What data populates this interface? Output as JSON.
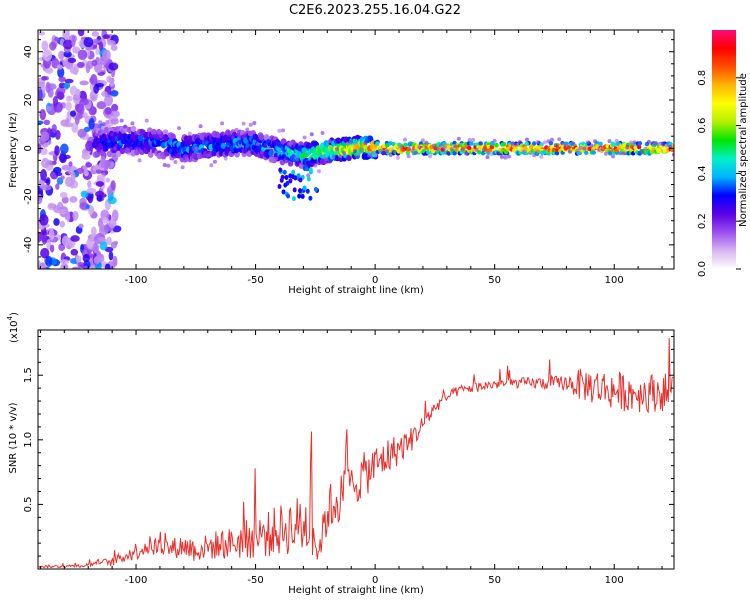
{
  "title": "C2E6.2023.255.16.04.G22",
  "chart_data": [
    {
      "type": "heatmap",
      "xlabel": "Height of straight line (km)",
      "ylabel": "Frequency (Hz)",
      "xlim": [
        -141,
        125
      ],
      "ylim": [
        -50,
        49
      ],
      "xticks": [
        -100,
        -50,
        0,
        50,
        100
      ],
      "yticks": [
        -40,
        -20,
        0,
        20,
        40
      ],
      "grid": false,
      "ridge": {
        "x": [
          -115,
          -110,
          -100,
          -90,
          -80,
          -70,
          -60,
          -50,
          -45,
          -40,
          -35,
          -30,
          -25,
          -20,
          -15,
          -10,
          -5,
          0,
          5,
          10,
          20,
          50,
          100,
          125
        ],
        "freq": [
          2,
          3,
          3,
          2,
          0,
          1,
          2,
          2,
          0,
          -1,
          -2,
          -3,
          -2,
          -1,
          -0.5,
          0,
          0.5,
          0.5,
          0,
          0,
          0,
          0,
          0,
          0
        ],
        "amplitude": [
          0.3,
          0.35,
          0.35,
          0.38,
          0.4,
          0.4,
          0.4,
          0.42,
          0.45,
          0.45,
          0.5,
          0.55,
          0.6,
          0.65,
          0.7,
          0.75,
          0.8,
          0.85,
          0.9,
          0.95,
          0.95,
          0.95,
          0.95,
          0.95
        ]
      },
      "colorbar": {
        "label": "Normalized spectral amplitude",
        "ticks": [
          "0.0",
          "0.2",
          "0.4",
          "0.6",
          "0.8"
        ],
        "range": [
          0,
          1
        ],
        "colormap": [
          "#ffffff",
          "#d7b4f0",
          "#9b4ff0",
          "#5a00e6",
          "#0000ff",
          "#00b4ff",
          "#00f0c8",
          "#00e600",
          "#b4f000",
          "#ffff00",
          "#ffb400",
          "#ff5000",
          "#ff0000",
          "#ff0a78"
        ]
      }
    },
    {
      "type": "line",
      "xlabel": "Height of straight line (km)",
      "ylabel": "SNR (10 * v/v)",
      "exponent_label": "(x10",
      "exponent_power": "4",
      "exponent_close": ")",
      "xlim": [
        -141,
        125
      ],
      "ylim": [
        0,
        1.85
      ],
      "xticks": [
        -100,
        -50,
        0,
        50,
        100
      ],
      "yticks": [
        "0.5",
        "1.0",
        "1.5"
      ],
      "color": "#e8302c",
      "series": [
        {
          "x": [
            -141,
            -130,
            -120,
            -115,
            -110,
            -105,
            -100,
            -95,
            -90,
            -85,
            -80,
            -75,
            -70,
            -65,
            -60,
            -55,
            -50,
            -45,
            -40,
            -35,
            -30,
            -26,
            -24,
            -20,
            -15,
            -10,
            -5,
            0,
            5,
            10,
            15,
            20,
            25,
            30,
            35,
            40,
            50,
            60,
            70,
            80,
            85,
            90,
            100,
            110,
            120,
            125
          ],
          "y": [
            0.02,
            0.02,
            0.03,
            0.06,
            0.05,
            0.1,
            0.14,
            0.18,
            0.17,
            0.16,
            0.18,
            0.15,
            0.17,
            0.19,
            0.2,
            0.22,
            0.25,
            0.27,
            0.3,
            0.33,
            0.34,
            0.35,
            0.1,
            0.45,
            0.55,
            0.65,
            0.72,
            0.8,
            0.87,
            0.93,
            1.0,
            1.12,
            1.25,
            1.33,
            1.38,
            1.4,
            1.43,
            1.44,
            1.44,
            1.44,
            1.43,
            1.42,
            1.38,
            1.36,
            1.37,
            1.37
          ],
          "noise": [
            0.01,
            0.01,
            0.015,
            0.02,
            0.03,
            0.05,
            0.07,
            0.08,
            0.07,
            0.08,
            0.09,
            0.1,
            0.1,
            0.12,
            0.12,
            0.15,
            0.17,
            0.18,
            0.2,
            0.22,
            0.25,
            0.25,
            0.06,
            0.2,
            0.2,
            0.18,
            0.18,
            0.16,
            0.15,
            0.12,
            0.1,
            0.07,
            0.05,
            0.04,
            0.04,
            0.04,
            0.04,
            0.04,
            0.05,
            0.06,
            0.12,
            0.14,
            0.15,
            0.15,
            0.15,
            0.15
          ]
        }
      ]
    }
  ]
}
